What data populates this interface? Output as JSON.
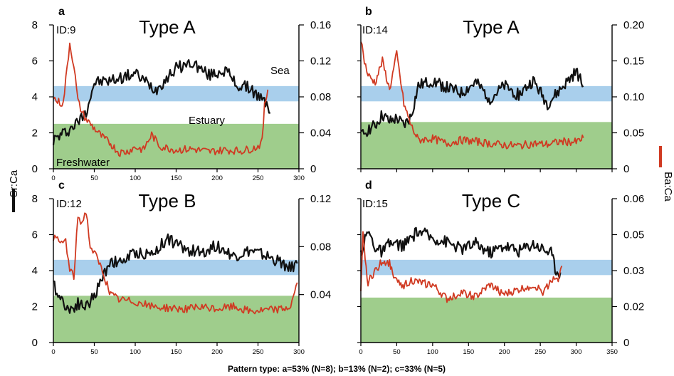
{
  "caption": "Pattern type: a=53% (N=8); b=13% (N=2); c=33% (N=5)",
  "left_axis_label": "Sr:Ca",
  "right_axis_label": "Ba:Ca",
  "colors": {
    "sr": "#111111",
    "ba": "#d03a22",
    "sea_band": "#a9cfec",
    "freshwater_band": "#9fcd8c"
  },
  "zone_labels": {
    "sea": "Sea",
    "estuary": "Estuary",
    "freshwater": "Freshwater"
  },
  "chart_data": [
    {
      "type": "line",
      "panel": "a",
      "id_label": "ID:9",
      "pattern": "Type A",
      "x_ticks": [
        "0",
        "50",
        "100",
        "150",
        "200",
        "250",
        "300"
      ],
      "xlim": [
        0,
        300
      ],
      "y_left_ticks": [
        "0",
        "2",
        "4",
        "6",
        "8"
      ],
      "ylim_left": [
        0,
        8
      ],
      "y_right_ticks": [
        "0",
        "0.04",
        "0.08",
        "0.12",
        "0.16"
      ],
      "ylim_right": [
        0,
        0.16
      ],
      "sea_band": [
        3.75,
        4.6
      ],
      "freshwater_band": [
        0,
        2.5
      ],
      "series": [
        {
          "axis": "left",
          "x": [
            0,
            10,
            20,
            30,
            40,
            50,
            70,
            100,
            125,
            150,
            170,
            190,
            210,
            225,
            240,
            255,
            262,
            265
          ],
          "values": [
            1.6,
            1.9,
            2.2,
            2.6,
            3.2,
            4.8,
            4.9,
            5.3,
            4.4,
            5.6,
            5.9,
            5.2,
            5.5,
            4.6,
            4.5,
            3.8,
            3.6,
            3.1
          ]
        },
        {
          "axis": "right",
          "x": [
            0,
            5,
            12,
            20,
            25,
            30,
            35,
            40,
            50,
            60,
            70,
            80,
            90,
            100,
            110,
            120,
            130,
            150,
            170,
            190,
            210,
            230,
            245,
            250,
            255,
            258,
            262
          ],
          "values": [
            0.079,
            0.075,
            0.072,
            0.14,
            0.115,
            0.075,
            0.063,
            0.055,
            0.045,
            0.035,
            0.028,
            0.018,
            0.019,
            0.024,
            0.021,
            0.038,
            0.025,
            0.021,
            0.022,
            0.019,
            0.021,
            0.02,
            0.023,
            0.025,
            0.03,
            0.07,
            0.088
          ]
        }
      ]
    },
    {
      "type": "line",
      "panel": "b",
      "id_label": "ID:14",
      "pattern": "Type A",
      "x_ticks": [],
      "xlim": [
        0,
        350
      ],
      "y_left_ticks": [],
      "ylim_left": [
        0,
        8
      ],
      "y_right_ticks": [
        "0",
        "0.05",
        "0.10",
        "0.15",
        "0.20"
      ],
      "ylim_right": [
        0,
        0.2
      ],
      "sea_band": [
        3.75,
        4.6
      ],
      "freshwater_band": [
        0,
        2.6
      ],
      "series": [
        {
          "axis": "left",
          "x": [
            0,
            10,
            20,
            30,
            40,
            50,
            60,
            70,
            80,
            100,
            120,
            140,
            160,
            180,
            200,
            220,
            240,
            260,
            280,
            300,
            310
          ],
          "values": [
            1.8,
            2.2,
            2.4,
            3.0,
            2.6,
            2.8,
            2.4,
            2.9,
            4.6,
            4.9,
            4.5,
            4.2,
            4.8,
            3.9,
            4.6,
            4.1,
            4.9,
            3.6,
            4.5,
            5.4,
            4.6
          ]
        },
        {
          "axis": "right",
          "x": [
            0,
            5,
            10,
            20,
            30,
            40,
            50,
            60,
            70,
            80,
            100,
            120,
            140,
            160,
            180,
            200,
            220,
            240,
            260,
            280,
            300,
            310
          ],
          "values": [
            0.18,
            0.15,
            0.13,
            0.12,
            0.15,
            0.11,
            0.16,
            0.09,
            0.06,
            0.04,
            0.042,
            0.035,
            0.04,
            0.038,
            0.035,
            0.033,
            0.032,
            0.035,
            0.034,
            0.038,
            0.037,
            0.043
          ]
        }
      ]
    },
    {
      "type": "line",
      "panel": "c",
      "id_label": "ID:12",
      "pattern": "Type B",
      "x_ticks": [
        "0",
        "50",
        "100",
        "150",
        "200",
        "250",
        "300"
      ],
      "xlim": [
        0,
        300
      ],
      "y_left_ticks": [
        "0",
        "2",
        "4",
        "6",
        "8"
      ],
      "ylim_left": [
        0,
        8
      ],
      "y_right_ticks": [
        "0.04",
        "0.08",
        "0.12"
      ],
      "ylim_right": [
        0,
        0.12
      ],
      "sea_band": [
        3.75,
        4.6
      ],
      "freshwater_band": [
        0,
        2.6
      ],
      "series": [
        {
          "axis": "left",
          "x": [
            0,
            10,
            20,
            30,
            40,
            50,
            60,
            70,
            80,
            100,
            120,
            140,
            160,
            180,
            200,
            220,
            240,
            260,
            280,
            290,
            298
          ],
          "values": [
            3.2,
            2.4,
            1.8,
            2.2,
            2.0,
            2.6,
            3.6,
            4.6,
            4.4,
            5.0,
            4.9,
            5.8,
            5.2,
            5.0,
            5.4,
            4.8,
            5.1,
            4.8,
            4.4,
            4.1,
            4.4
          ]
        },
        {
          "axis": "right",
          "x": [
            0,
            5,
            10,
            15,
            20,
            25,
            30,
            35,
            40,
            45,
            50,
            60,
            70,
            80,
            100,
            120,
            140,
            160,
            180,
            200,
            220,
            240,
            260,
            280,
            290,
            298
          ],
          "values": [
            0.088,
            0.085,
            0.083,
            0.085,
            0.06,
            0.055,
            0.105,
            0.1,
            0.11,
            0.08,
            0.075,
            0.06,
            0.04,
            0.036,
            0.034,
            0.03,
            0.029,
            0.028,
            0.029,
            0.028,
            0.03,
            0.026,
            0.027,
            0.028,
            0.03,
            0.05
          ]
        }
      ]
    },
    {
      "type": "line",
      "panel": "d",
      "id_label": "ID:15",
      "pattern": "Type C",
      "x_ticks": [
        "0",
        "50",
        "100",
        "150",
        "200",
        "250",
        "300",
        "350"
      ],
      "xlim": [
        0,
        350
      ],
      "y_left_ticks": [],
      "ylim_left": [
        0,
        8
      ],
      "y_right_ticks": [
        "0",
        "0.02",
        "0.03",
        "0.05",
        "0.06"
      ],
      "ylim_right": [
        0,
        0.06
      ],
      "sea_band": [
        3.75,
        4.6
      ],
      "freshwater_band": [
        0,
        2.5
      ],
      "series": [
        {
          "axis": "left",
          "x": [
            0,
            10,
            20,
            30,
            40,
            60,
            80,
            100,
            120,
            140,
            160,
            180,
            200,
            220,
            240,
            255,
            265,
            272,
            278
          ],
          "values": [
            5.0,
            6.2,
            5.3,
            5.0,
            5.5,
            5.4,
            6.2,
            5.8,
            5.6,
            5.2,
            5.5,
            5.0,
            5.4,
            5.1,
            5.5,
            5.2,
            5.0,
            4.0,
            3.9
          ]
        },
        {
          "axis": "right",
          "x": [
            0,
            3,
            6,
            10,
            20,
            30,
            40,
            50,
            60,
            70,
            80,
            100,
            120,
            140,
            160,
            180,
            200,
            220,
            240,
            255,
            265,
            270,
            275,
            280
          ],
          "values": [
            0.02,
            0.045,
            0.035,
            0.025,
            0.03,
            0.034,
            0.033,
            0.025,
            0.024,
            0.026,
            0.025,
            0.024,
            0.018,
            0.021,
            0.019,
            0.024,
            0.02,
            0.022,
            0.024,
            0.021,
            0.026,
            0.028,
            0.025,
            0.032
          ]
        }
      ]
    }
  ]
}
